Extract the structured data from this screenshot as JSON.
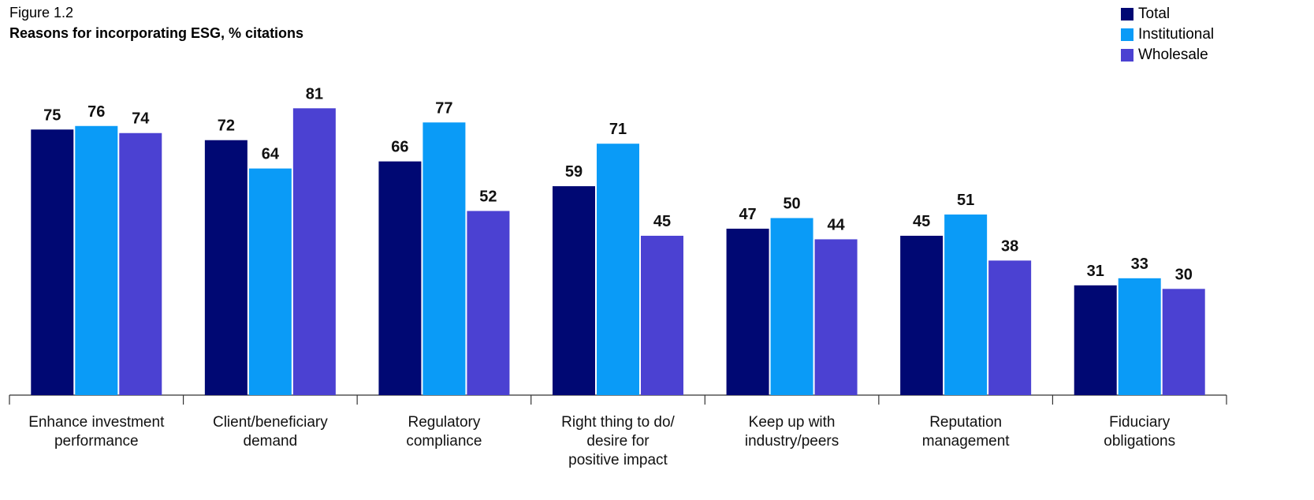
{
  "figure_label": "Figure 1.2",
  "chart_data": {
    "type": "bar",
    "title": "Reasons for incorporating ESG, % citations",
    "xlabel": "",
    "ylabel": "",
    "ylim": [
      0,
      100
    ],
    "grid": false,
    "legend_position": "top-right",
    "categories": [
      [
        "Enhance investment",
        "performance"
      ],
      [
        "Client/beneficiary",
        "demand"
      ],
      [
        "Regulatory",
        "compliance"
      ],
      [
        "Right thing to do/",
        "desire for",
        "positive impact"
      ],
      [
        "Keep up with",
        "industry/peers"
      ],
      [
        "Reputation",
        "management"
      ],
      [
        "Fiduciary",
        "obligations"
      ]
    ],
    "series": [
      {
        "name": "Total",
        "color": "#000873",
        "values": [
          75,
          72,
          66,
          59,
          47,
          45,
          31
        ]
      },
      {
        "name": "Institutional",
        "color": "#0a9bf7",
        "values": [
          76,
          64,
          77,
          71,
          50,
          51,
          33
        ]
      },
      {
        "name": "Wholesale",
        "color": "#4b41d2",
        "values": [
          74,
          81,
          52,
          45,
          44,
          38,
          30
        ]
      }
    ]
  }
}
